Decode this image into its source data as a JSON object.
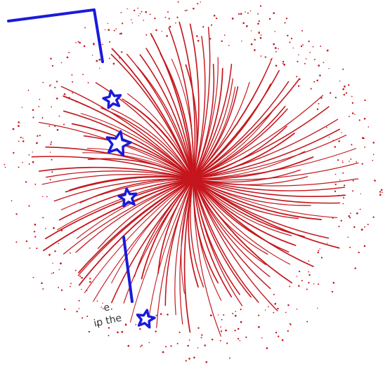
{
  "colors": {
    "burst": "#c4161c",
    "outline": "#1a1adb",
    "background": "#ffffff",
    "text": "#333333"
  },
  "icons": [
    "firework-burst-icon",
    "star-icon"
  ],
  "text_fragments": [
    "e.",
    "ip the"
  ]
}
